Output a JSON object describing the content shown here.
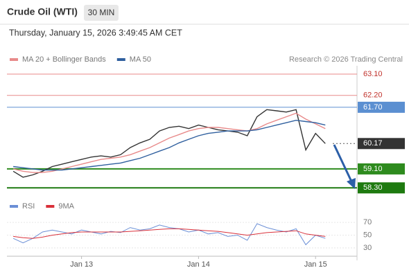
{
  "chart_data": [
    {
      "type": "line",
      "title": "Crude Oil (WTI)",
      "timeframe": "30 MIN",
      "subtitle": "Thursday, January 15, 2026 3:49:45 AM CET",
      "source": "Research © 2026 Trading Central",
      "x": [
        -14,
        -12,
        -10,
        -8,
        -6,
        -4,
        -2,
        0,
        2,
        4,
        6,
        8,
        10,
        12,
        14,
        16,
        18,
        20,
        22,
        24,
        26,
        28,
        30,
        32,
        34,
        36,
        38,
        40,
        42,
        44,
        46,
        48,
        50
      ],
      "values": [
        59.0,
        58.75,
        58.85,
        59.0,
        59.2,
        59.3,
        59.4,
        59.5,
        59.6,
        59.65,
        59.6,
        59.7,
        60.0,
        60.2,
        60.35,
        60.7,
        60.85,
        60.9,
        60.8,
        60.95,
        60.85,
        60.75,
        60.7,
        60.65,
        60.5,
        61.3,
        61.6,
        61.55,
        61.5,
        61.6,
        59.9,
        60.6,
        60.17
      ],
      "color": "#333333",
      "series": [
        {
          "name": "MA 20 + Bollinger Bands",
          "color": "#e88a8a",
          "values": [
            59.1,
            59.0,
            58.95,
            58.95,
            59.0,
            59.1,
            59.2,
            59.3,
            59.4,
            59.5,
            59.55,
            59.6,
            59.7,
            59.85,
            60.0,
            60.2,
            60.4,
            60.55,
            60.7,
            60.8,
            60.85,
            60.85,
            60.8,
            60.75,
            60.7,
            60.8,
            61.0,
            61.15,
            61.3,
            61.45,
            61.2,
            61.0,
            60.8
          ]
        },
        {
          "name": "MA 50",
          "color": "#2f5f9e",
          "values": [
            59.2,
            59.15,
            59.1,
            59.05,
            59.05,
            59.05,
            59.1,
            59.15,
            59.2,
            59.25,
            59.3,
            59.35,
            59.45,
            59.55,
            59.7,
            59.85,
            60.0,
            60.2,
            60.35,
            60.5,
            60.6,
            60.65,
            60.7,
            60.7,
            60.7,
            60.75,
            60.85,
            60.95,
            61.05,
            61.15,
            61.1,
            61.05,
            60.95
          ]
        }
      ],
      "levels": [
        {
          "value": 63.1,
          "label": "63.10",
          "color": "#e88a8a",
          "box": false
        },
        {
          "value": 62.2,
          "label": "62.20",
          "color": "#e88a8a",
          "box": false
        },
        {
          "value": 61.7,
          "label": "61.70",
          "color": "#5b8fd1",
          "box": true
        },
        {
          "value": 60.17,
          "label": "60.17",
          "color": "#333333",
          "box": true
        },
        {
          "value": 59.1,
          "label": "59.10",
          "color": "#2e8b1e",
          "box": true
        },
        {
          "value": 58.3,
          "label": "58.30",
          "color": "#1e7a10",
          "box": true
        }
      ],
      "xlim": [
        -15.3,
        56.5
      ],
      "ylim": [
        57.9,
        63.45
      ]
    },
    {
      "type": "line",
      "x": [
        -14,
        -12,
        -10,
        -8,
        -6,
        -4,
        -2,
        0,
        2,
        4,
        6,
        8,
        10,
        12,
        14,
        16,
        18,
        20,
        22,
        24,
        26,
        28,
        30,
        32,
        34,
        36,
        38,
        40,
        42,
        44,
        46,
        48,
        50
      ],
      "series": [
        {
          "name": "RSI",
          "color": "#6b8fd6",
          "values": [
            45,
            38,
            45,
            55,
            58,
            55,
            52,
            58,
            55,
            52,
            56,
            54,
            62,
            58,
            60,
            66,
            62,
            60,
            55,
            58,
            52,
            54,
            48,
            50,
            42,
            68,
            62,
            58,
            55,
            60,
            35,
            50,
            45
          ]
        },
        {
          "name": "9MA",
          "color": "#d9303a",
          "values": [
            48,
            46,
            45,
            47,
            50,
            52,
            54,
            55,
            55,
            55,
            55,
            55,
            56,
            57,
            58,
            59,
            60,
            60,
            59,
            58,
            57,
            56,
            54,
            52,
            50,
            52,
            54,
            55,
            56,
            57,
            52,
            50,
            48
          ]
        }
      ],
      "xlim": [
        -15.3,
        56.5
      ],
      "xticks": [
        {
          "value": 0,
          "label": "Jan 13"
        },
        {
          "value": 24,
          "label": "Jan 14"
        },
        {
          "value": 48,
          "label": "Jan 15"
        }
      ],
      "ylim": [
        17,
        93
      ],
      "yticks": [
        70,
        50,
        30
      ]
    }
  ]
}
